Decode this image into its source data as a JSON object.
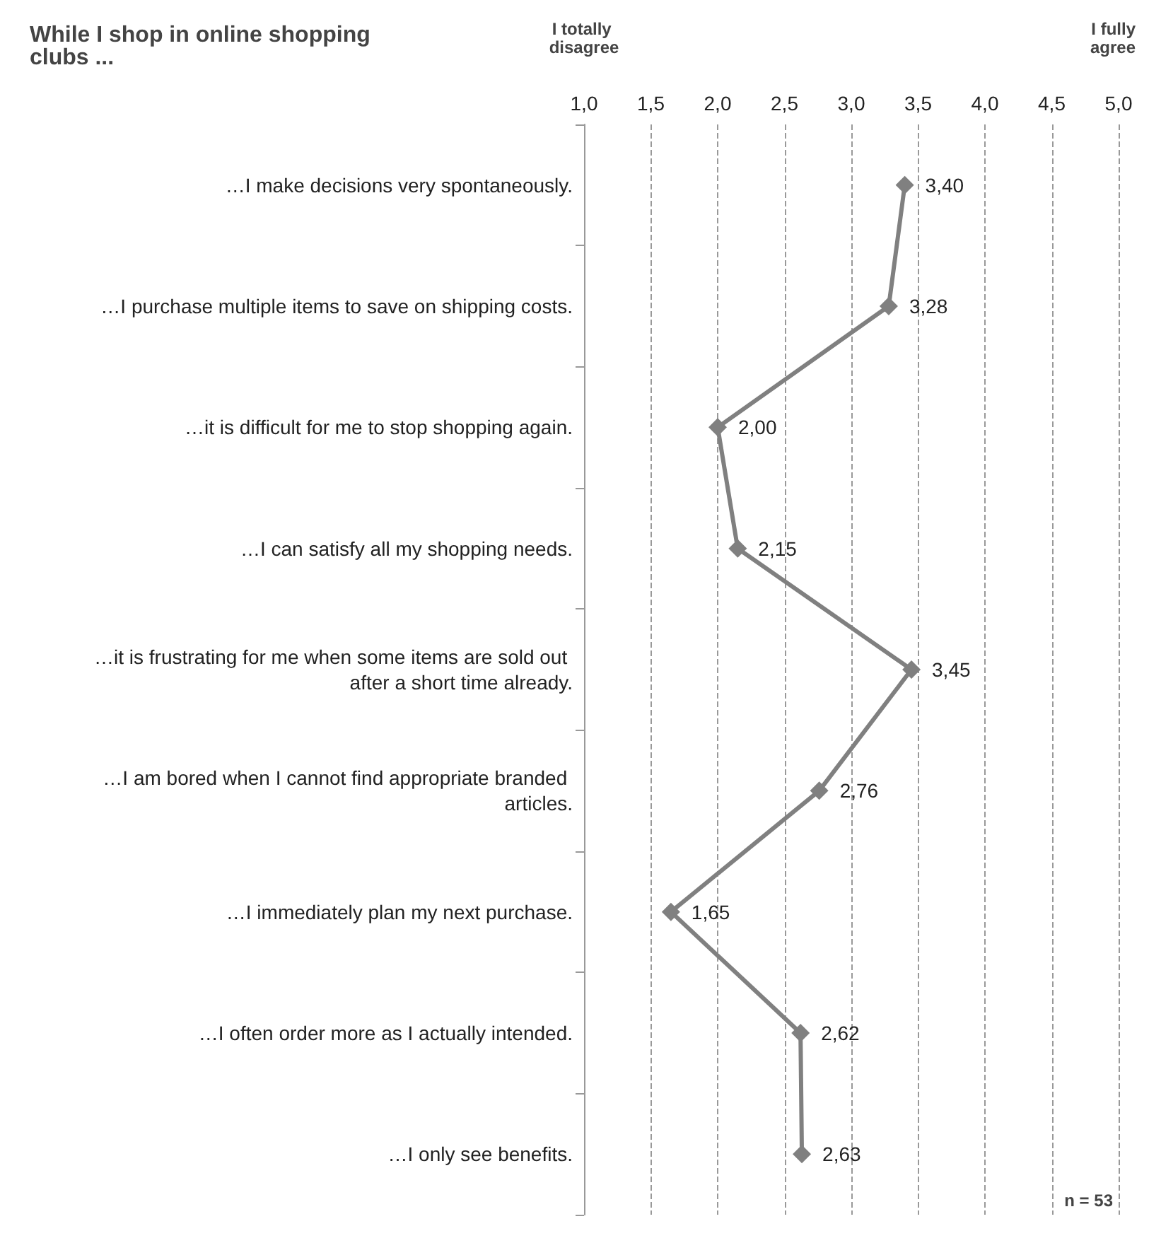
{
  "chart_data": {
    "type": "line",
    "orientation": "horizontal",
    "title": "While I shop in online shopping clubs ...",
    "categories": [
      "…I make decisions very spontaneously.",
      "…I purchase multiple items to save on shipping costs.",
      "…it is difficult for me to stop shopping again.",
      "…I can satisfy all my shopping needs.",
      "…it is frustrating for me when some items are sold out after a short time already.",
      "…I am bored when I cannot find appropriate branded articles.",
      "…I immediately plan my next purchase.",
      "…I often order more as I actually intended.",
      "…I only see benefits."
    ],
    "series": [
      {
        "color": "#808080",
        "values": [
          3.4,
          3.28,
          2.0,
          2.15,
          3.45,
          2.76,
          1.65,
          2.62,
          2.63
        ],
        "value_labels": [
          "3,40",
          "3,28",
          "2,00",
          "2,15",
          "3,45",
          "2,76",
          "1,65",
          "2,62",
          "2,63"
        ]
      }
    ],
    "xlim": [
      1,
      5
    ],
    "xticks": [
      {
        "value": 1,
        "label": "1,0"
      },
      {
        "value": 1.5,
        "label": "1,5"
      },
      {
        "value": 2,
        "label": "2,0"
      },
      {
        "value": 2.5,
        "label": "2,5"
      },
      {
        "value": 3,
        "label": "3,0"
      },
      {
        "value": 3.5,
        "label": "3,5"
      },
      {
        "value": 4,
        "label": "4,0"
      },
      {
        "value": 4.5,
        "label": "4,5"
      },
      {
        "value": 5,
        "label": "5,0"
      }
    ],
    "grid": "x",
    "marker": "diamond",
    "line_style": "solid",
    "annotations": [
      "I totally disagree",
      "I fully agree",
      "n = 53"
    ]
  }
}
